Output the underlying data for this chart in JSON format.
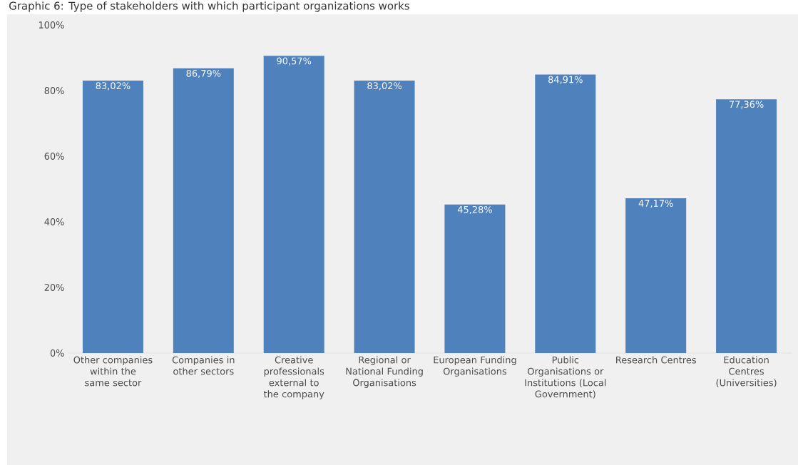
{
  "chart_data": {
    "type": "bar",
    "title": "Graphic 6: Type of stakeholders with which participant organizations works",
    "categories": [
      "Other companies within the same sector",
      "Companies in other sectors",
      "Creative professionals external to the company",
      "Regional or National Funding Organisations",
      "European Funding Organisations",
      "Public Organisations or Institutions (Local Government)",
      "Research Centres",
      "Education Centres (Universities)"
    ],
    "values": [
      83.02,
      86.79,
      90.57,
      83.02,
      45.28,
      84.91,
      47.17,
      77.36
    ],
    "value_labels": [
      "83,02%",
      "86,79%",
      "90,57%",
      "83,02%",
      "45,28%",
      "84,91%",
      "47,17%",
      "77,36%"
    ],
    "color": "#4f81bd",
    "ylim": [
      0,
      100
    ],
    "yticks": [
      {
        "value": 0,
        "label": "0%"
      },
      {
        "value": 20,
        "label": "20%"
      },
      {
        "value": 40,
        "label": "40%"
      },
      {
        "value": 60,
        "label": "60%"
      },
      {
        "value": 80,
        "label": "80%"
      },
      {
        "value": 100,
        "label": "100%"
      }
    ]
  }
}
